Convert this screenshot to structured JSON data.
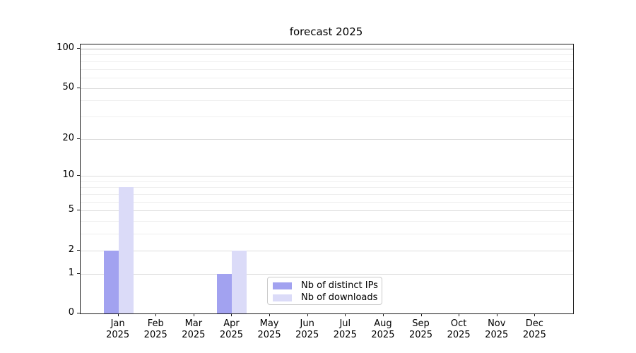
{
  "chart_data": {
    "type": "bar",
    "title": "forecast 2025",
    "x_categories": [
      "Jan 2025",
      "Feb 2025",
      "Mar 2025",
      "Apr 2025",
      "May 2025",
      "Jun 2025",
      "Jul 2025",
      "Aug 2025",
      "Sep 2025",
      "Oct 2025",
      "Nov 2025",
      "Dec 2025"
    ],
    "x_tick_months": [
      "Jan",
      "Feb",
      "Mar",
      "Apr",
      "May",
      "Jun",
      "Jul",
      "Aug",
      "Sep",
      "Oct",
      "Nov",
      "Dec"
    ],
    "x_tick_year": "2025",
    "series": [
      {
        "name": "Nb of distinct IPs",
        "color": "#a2a2f0",
        "values": [
          2,
          0,
          0,
          1,
          0,
          0,
          0,
          0,
          0,
          0,
          0,
          0
        ]
      },
      {
        "name": "Nb of downloads",
        "color": "#dbdbf8",
        "values": [
          8,
          0,
          0,
          2,
          0,
          0,
          0,
          0,
          0,
          0,
          0,
          0
        ]
      }
    ],
    "y_scale": "log(1+v)",
    "ylim": [
      0,
      108
    ],
    "y_major_ticks": [
      0,
      1,
      2,
      5,
      10,
      20,
      50,
      100
    ],
    "y_minor_gridlines": [
      3,
      4,
      6,
      7,
      8,
      9,
      30,
      40,
      60,
      70,
      80,
      90
    ],
    "grid": true,
    "legend_position": "inside lower-center"
  }
}
